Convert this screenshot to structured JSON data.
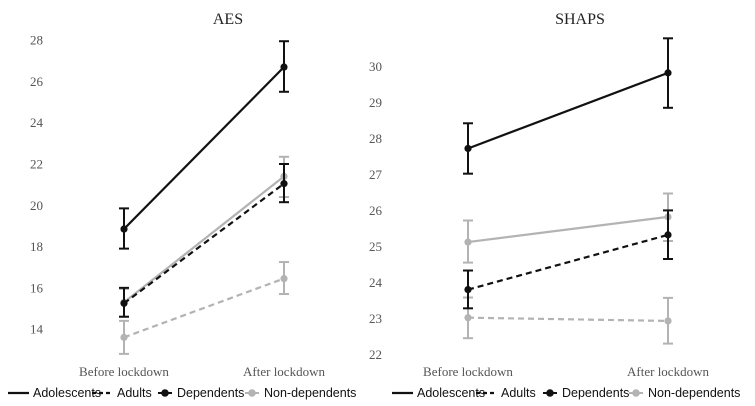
{
  "chart_data": [
    {
      "type": "line",
      "title": "AES",
      "categories": [
        "Before lockdown",
        "After lockdown"
      ],
      "ylim": [
        12.6,
        28.3
      ],
      "yticks": [
        14,
        16,
        18,
        20,
        22,
        24,
        26,
        28
      ],
      "series": [
        {
          "group": "Adolescents",
          "status": "Dependents",
          "values": [
            18.85,
            26.7
          ],
          "err_low": [
            17.9,
            25.5
          ],
          "err_high": [
            19.85,
            27.95
          ]
        },
        {
          "group": "Adolescents",
          "status": "Non-dependents",
          "values": [
            15.3,
            21.4
          ],
          "err_low": [
            14.6,
            20.4
          ],
          "err_high": [
            15.95,
            22.35
          ]
        },
        {
          "group": "Adults",
          "status": "Dependents",
          "values": [
            15.25,
            21.05
          ],
          "err_low": [
            14.6,
            20.15
          ],
          "err_high": [
            16.0,
            22.0
          ]
        },
        {
          "group": "Adults",
          "status": "Non-dependents",
          "values": [
            13.6,
            16.45
          ],
          "err_low": [
            12.8,
            15.7
          ],
          "err_high": [
            14.4,
            17.25
          ]
        }
      ]
    },
    {
      "type": "line",
      "title": "SHAPS",
      "categories": [
        "Before lockdown",
        "After lockdown"
      ],
      "ylim": [
        21.9,
        30.9
      ],
      "yticks": [
        22,
        23,
        24,
        25,
        26,
        27,
        28,
        29,
        30
      ],
      "series": [
        {
          "group": "Adolescents",
          "status": "Dependents",
          "values": [
            27.72,
            29.82
          ],
          "err_low": [
            27.02,
            28.85
          ],
          "err_high": [
            28.42,
            30.78
          ]
        },
        {
          "group": "Adolescents",
          "status": "Non-dependents",
          "values": [
            25.12,
            25.82
          ],
          "err_low": [
            24.55,
            25.15
          ],
          "err_high": [
            25.72,
            26.47
          ]
        },
        {
          "group": "Adults",
          "status": "Dependents",
          "values": [
            23.8,
            25.32
          ],
          "err_low": [
            23.28,
            24.65
          ],
          "err_high": [
            24.33,
            26.0
          ]
        },
        {
          "group": "Adults",
          "status": "Non-dependents",
          "values": [
            23.02,
            22.93
          ],
          "err_low": [
            22.45,
            22.3
          ],
          "err_high": [
            23.58,
            23.57
          ]
        }
      ]
    }
  ],
  "colors": {
    "Dependents": "#111111",
    "Non-dependents": "#b3b3b3"
  },
  "line_styles": {
    "Adolescents": "solid",
    "Adults": "dashed"
  },
  "legend": {
    "items": [
      {
        "label": "Adolescents",
        "kind": "line",
        "dash": "solid"
      },
      {
        "label": "Adults",
        "kind": "line",
        "dash": "dashed"
      },
      {
        "label": "Dependents",
        "kind": "marker",
        "color": "#111111"
      },
      {
        "label": "Non-dependents",
        "kind": "marker",
        "color": "#b3b3b3"
      }
    ]
  }
}
